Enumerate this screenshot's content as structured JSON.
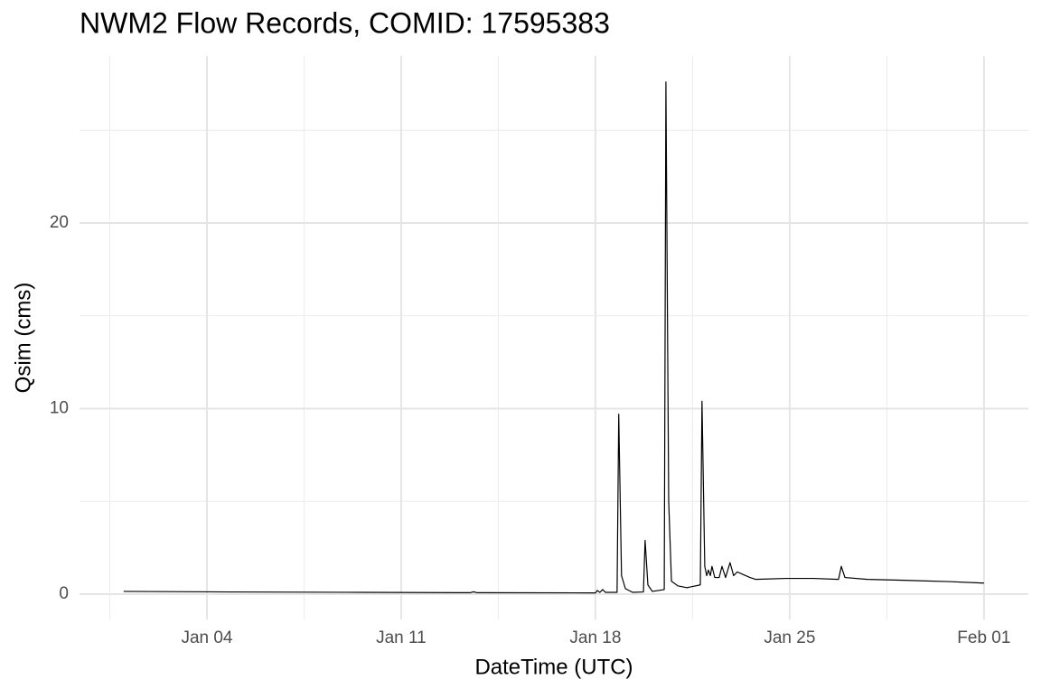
{
  "chart_data": {
    "type": "line",
    "title": "NWM2 Flow Records, COMID: 17595383",
    "xlabel": "DateTime (UTC)",
    "ylabel": "Qsim (cms)",
    "x": [
      1.0,
      5.0,
      9.57,
      13.48,
      13.61,
      13.74,
      18.0,
      18.07,
      18.16,
      18.26,
      18.36,
      18.78,
      18.84,
      18.94,
      19.08,
      19.34,
      19.73,
      19.79,
      19.89,
      20.05,
      20.48,
      20.54,
      20.64,
      20.74,
      20.97,
      21.29,
      21.78,
      21.84,
      21.94,
      22.01,
      22.07,
      22.14,
      22.2,
      22.3,
      22.46,
      22.56,
      22.69,
      22.85,
      22.98,
      23.11,
      23.57,
      23.77,
      24.87,
      25.85,
      26.76,
      26.86,
      26.99,
      27.8,
      29.11,
      30.73,
      32.0
    ],
    "values": [
      0.15,
      0.12,
      0.1,
      0.08,
      0.13,
      0.08,
      0.07,
      0.2,
      0.1,
      0.25,
      0.1,
      0.1,
      9.7,
      1.0,
      0.3,
      0.1,
      0.12,
      2.9,
      0.5,
      0.15,
      0.25,
      27.6,
      5,
      0.7,
      0.45,
      0.35,
      0.5,
      10.4,
      1.5,
      1.0,
      1.3,
      1.0,
      1.5,
      0.9,
      0.9,
      1.5,
      0.9,
      1.7,
      1.0,
      1.2,
      0.9,
      0.8,
      0.85,
      0.85,
      0.8,
      1.5,
      0.9,
      0.8,
      0.75,
      0.68,
      0.6
    ],
    "color": "#000000",
    "xlim": [
      -0.59,
      33.6
    ],
    "xticks": [
      {
        "value": 4,
        "label": "Jan 04"
      },
      {
        "value": 11,
        "label": "Jan 11"
      },
      {
        "value": 18,
        "label": "Jan 18"
      },
      {
        "value": 25,
        "label": "Jan 25"
      },
      {
        "value": 32,
        "label": "Feb 01"
      }
    ],
    "xminorticks": [
      0.5,
      7.5,
      14.5,
      21.5,
      28.5
    ],
    "ylim": [
      -1.36,
      29
    ],
    "yticks": [
      0,
      10,
      20
    ],
    "yminorticks": [
      5,
      15,
      25
    ],
    "grid": true
  }
}
